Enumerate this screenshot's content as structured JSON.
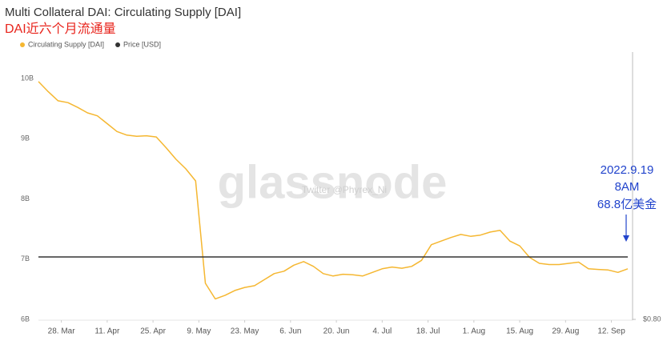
{
  "chart_data": {
    "type": "line",
    "title": "Multi Collateral DAI: Circulating Supply [DAI]",
    "subtitle": "DAI近六个月流通量",
    "annotations": [
      "2022.9.19",
      "8AM",
      "68.8亿美金"
    ],
    "watermark": [
      "glassnode",
      "Twitter @Phyrex_Ni"
    ],
    "legend": "top-left",
    "grid": false,
    "x": [
      "21. Mar",
      "24. Mar",
      "27. Mar",
      "30. Mar",
      "2. Apr",
      "5. Apr",
      "8. Apr",
      "11. Apr",
      "14. Apr",
      "17. Apr",
      "20. Apr",
      "23. Apr",
      "26. Apr",
      "29. Apr",
      "2. May",
      "5. May",
      "8. May",
      "11. May",
      "14. May",
      "17. May",
      "20. May",
      "23. May",
      "26. May",
      "29. May",
      "1. Jun",
      "4. Jun",
      "7. Jun",
      "10. Jun",
      "13. Jun",
      "16. Jun",
      "19. Jun",
      "22. Jun",
      "25. Jun",
      "28. Jun",
      "1. Jul",
      "4. Jul",
      "7. Jul",
      "10. Jul",
      "13. Jul",
      "16. Jul",
      "19. Jul",
      "22. Jul",
      "25. Jul",
      "28. Jul",
      "31. Jul",
      "3. Aug",
      "6. Aug",
      "9. Aug",
      "12. Aug",
      "15. Aug",
      "18. Aug",
      "21. Aug",
      "24. Aug",
      "27. Aug",
      "30. Aug",
      "2. Sep",
      "5. Sep",
      "8. Sep",
      "11. Sep",
      "14. Sep",
      "17. Sep"
    ],
    "xticks": [
      "28. Mar",
      "11. Apr",
      "25. Apr",
      "9. May",
      "23. May",
      "6. Jun",
      "20. Jun",
      "4. Jul",
      "18. Jul",
      "1. Aug",
      "15. Aug",
      "29. Aug",
      "12. Sep"
    ],
    "series": [
      {
        "name": "Circulating Supply [DAI]",
        "color": "#f5b731",
        "values": [
          9.95,
          9.78,
          9.63,
          9.6,
          9.52,
          9.43,
          9.38,
          9.25,
          9.12,
          9.06,
          9.04,
          9.05,
          9.03,
          8.85,
          8.66,
          8.5,
          8.3,
          6.6,
          6.34,
          6.4,
          6.48,
          6.53,
          6.56,
          6.66,
          6.76,
          6.8,
          6.9,
          6.96,
          6.88,
          6.76,
          6.72,
          6.75,
          6.74,
          6.72,
          6.78,
          6.84,
          6.87,
          6.85,
          6.88,
          6.98,
          7.24,
          7.3,
          7.36,
          7.41,
          7.38,
          7.4,
          7.45,
          7.48,
          7.3,
          7.22,
          7.03,
          6.93,
          6.91,
          6.91,
          6.93,
          6.95,
          6.84,
          6.83,
          6.82,
          6.78,
          6.84
        ]
      },
      {
        "name": "Price [USD]",
        "color": "#333333",
        "axis": "y2",
        "values": [
          1.0,
          1.0,
          1.0,
          1.0,
          1.0,
          1.0,
          1.0,
          1.0,
          1.0,
          1.0,
          1.0,
          1.0,
          1.0,
          1.0,
          1.0,
          1.0,
          1.0,
          1.0,
          1.0,
          1.0,
          1.0,
          1.0,
          1.0,
          1.0,
          1.0,
          1.0,
          1.0,
          1.0,
          1.0,
          1.0,
          1.0,
          1.0,
          1.0,
          1.0,
          1.0,
          1.0,
          1.0,
          1.0,
          1.0,
          1.0,
          1.0,
          1.0,
          1.0,
          1.0,
          1.0,
          1.0,
          1.0,
          1.0,
          1.0,
          1.0,
          1.0,
          1.0,
          1.0,
          1.0,
          1.0,
          1.0,
          1.0,
          1.0,
          1.0,
          1.0,
          1.0
        ]
      }
    ],
    "ylim": [
      6,
      10.44
    ],
    "yticks": [
      {
        "value": 6,
        "label": "6B"
      },
      {
        "value": 7,
        "label": "7B"
      },
      {
        "value": 8,
        "label": "8B"
      },
      {
        "value": 9,
        "label": "9B"
      },
      {
        "value": 10,
        "label": "10B"
      }
    ],
    "y2lim": [
      0.8,
      1.656
    ],
    "y2ticks": [
      {
        "value": 0.8,
        "label": "$0.80"
      }
    ]
  }
}
